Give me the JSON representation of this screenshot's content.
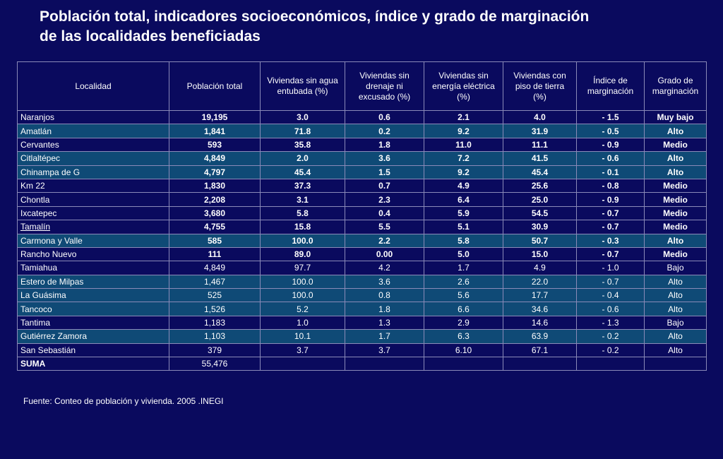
{
  "title": {
    "line1": "Población total,  indicadores socioeconómicos, índice y grado de marginación",
    "line2": "de las localidades beneficiadas"
  },
  "table": {
    "headers": [
      "Localidad",
      "Población total",
      "Viviendas  sin agua  entubada (%)",
      "Viviendas  sin drenaje  ni excusado (%)",
      "Viviendas  sin energía eléctrica (%)",
      "Viviendas  con piso de  tierra (%)",
      "Índice de marginación",
      "Grado de marginación"
    ],
    "rows": [
      {
        "localidad": "Naranjos",
        "poblacion": "19,195",
        "agua": "3.0",
        "drenaje": "0.6",
        "energia": "2.1",
        "piso": "4.0",
        "indice": "-  1.5",
        "grado": "Muy bajo"
      },
      {
        "localidad": "Amatlán",
        "poblacion": "1,841",
        "agua": "71.8",
        "drenaje": "0.2",
        "energia": "9.2",
        "piso": "31.9",
        "indice": "-  0.5",
        "grado": "Alto"
      },
      {
        "localidad": "Cervantes",
        "poblacion": "593",
        "agua": "35.8",
        "drenaje": "1.8",
        "energia": "11.0",
        "piso": "11.1",
        "indice": "-  0.9",
        "grado": "Medio"
      },
      {
        "localidad": "Citlaltépec",
        "poblacion": "4,849",
        "agua": "2.0",
        "drenaje": "3.6",
        "energia": "7.2",
        "piso": "41.5",
        "indice": "-  0.6",
        "grado": "Alto"
      },
      {
        "localidad": "Chinampa de G",
        "poblacion": "4,797",
        "agua": "45.4",
        "drenaje": "1.5",
        "energia": "9.2",
        "piso": "45.4",
        "indice": "-  0.1",
        "grado": "Alto"
      },
      {
        "localidad": "Km 22",
        "poblacion": "1,830",
        "agua": "37.3",
        "drenaje": "0.7",
        "energia": "4.9",
        "piso": "25.6",
        "indice": "-  0.8",
        "grado": "Medio"
      },
      {
        "localidad": "Chontla",
        "poblacion": "2,208",
        "agua": "3.1",
        "drenaje": "2.3",
        "energia": "6.4",
        "piso": "25.0",
        "indice": "-  0.9",
        "grado": "Medio"
      },
      {
        "localidad": "Ixcatepec",
        "poblacion": "3,680",
        "agua": "5.8",
        "drenaje": "0.4",
        "energia": "5.9",
        "piso": "54.5",
        "indice": "-  0.7",
        "grado": "Medio"
      },
      {
        "localidad": "Tamalín",
        "poblacion": "4,755",
        "agua": "15.8",
        "drenaje": "5.5",
        "energia": "5.1",
        "piso": "30.9",
        "indice": "-  0.7",
        "grado": "Medio"
      },
      {
        "localidad": "Carmona y Valle",
        "poblacion": "585",
        "agua": "100.0",
        "drenaje": "2.2",
        "energia": "5.8",
        "piso": "50.7",
        "indice": "-  0.3",
        "grado": "Alto"
      },
      {
        "localidad": "Rancho Nuevo",
        "poblacion": "111",
        "agua": "89.0",
        "drenaje": "0.00",
        "energia": "5.0",
        "piso": "15.0",
        "indice": "-  0.7",
        "grado": "Medio"
      },
      {
        "localidad": "Tamiahua",
        "poblacion": "4,849",
        "agua": "97.7",
        "drenaje": "4.2",
        "energia": "1.7",
        "piso": "4.9",
        "indice": "-  1.0",
        "grado": "Bajo"
      },
      {
        "localidad": "Estero de Milpas",
        "poblacion": "1,467",
        "agua": "100.0",
        "drenaje": "3.6",
        "energia": "2.6",
        "piso": "22.0",
        "indice": "-  0.7",
        "grado": "Alto"
      },
      {
        "localidad": "La Guásima",
        "poblacion": "525",
        "agua": "100.0",
        "drenaje": "0.8",
        "energia": "5.6",
        "piso": "17.7",
        "indice": "-  0.4",
        "grado": "Alto"
      },
      {
        "localidad": "Tancoco",
        "poblacion": "1,526",
        "agua": "5.2",
        "drenaje": "1.8",
        "energia": "6.6",
        "piso": "34.6",
        "indice": "-  0.6",
        "grado": "Alto"
      },
      {
        "localidad": "Tantima",
        "poblacion": "1,183",
        "agua": "1.0",
        "drenaje": "1.3",
        "energia": "2.9",
        "piso": "14.6",
        "indice": "-  1.3",
        "grado": "Bajo"
      },
      {
        "localidad": "Gutiérrez Zamora",
        "poblacion": "1,103",
        "agua": "10.1",
        "drenaje": "1.7",
        "energia": "6.3",
        "piso": "63.9",
        "indice": "-  0.2",
        "grado": "Alto"
      },
      {
        "localidad": "San Sebastián",
        "poblacion": "379",
        "agua": "3.7",
        "drenaje": "3.7",
        "energia": "6.10",
        "piso": "67.1",
        "indice": "-  0.2",
        "grado": "Alto"
      }
    ],
    "total": {
      "label": "SUMA",
      "poblacion": "55,476"
    }
  },
  "source": "Fuente: Conteo de población y vivienda. 2005 .INEGI",
  "colors": {
    "background": "#0a0a5e",
    "row_highlight": "#0f4a76",
    "text": "#ffffff"
  }
}
